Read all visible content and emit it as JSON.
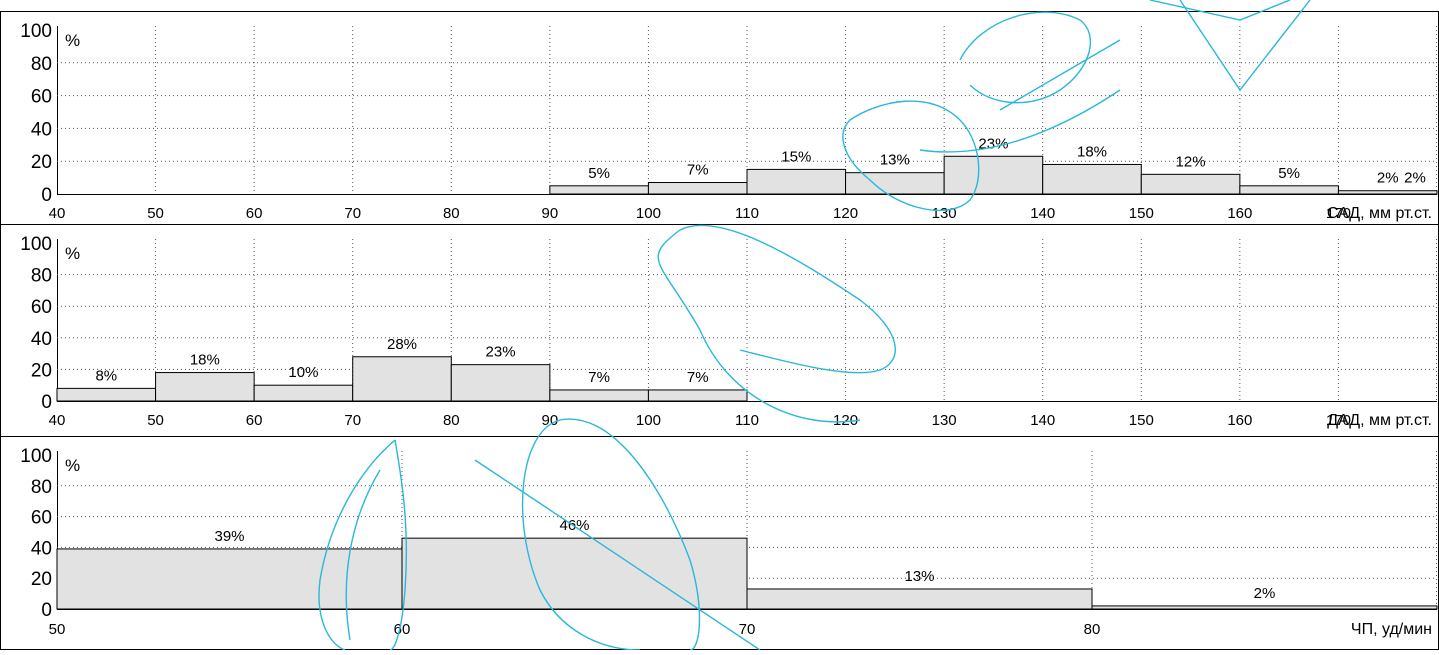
{
  "header_text": "",
  "chart_data": [
    {
      "type": "bar",
      "xlabel": "САД, мм рт.ст.",
      "ylabel": "%",
      "xlim": [
        40,
        180
      ],
      "ylim": [
        0,
        100
      ],
      "x_ticks": [
        "40",
        "50",
        "60",
        "70",
        "80",
        "90",
        "100",
        "110",
        "120",
        "130",
        "140",
        "150",
        "160",
        "170"
      ],
      "y_ticks": [
        "100",
        "80",
        "60",
        "40",
        "20",
        "0"
      ],
      "bins": [
        {
          "from": 90,
          "to": 100,
          "value": 5,
          "label": "5%"
        },
        {
          "from": 100,
          "to": 110,
          "value": 7,
          "label": "7%"
        },
        {
          "from": 110,
          "to": 120,
          "value": 15,
          "label": "15%"
        },
        {
          "from": 120,
          "to": 130,
          "value": 13,
          "label": "13%"
        },
        {
          "from": 130,
          "to": 140,
          "value": 23,
          "label": "23%"
        },
        {
          "from": 140,
          "to": 150,
          "value": 18,
          "label": "18%"
        },
        {
          "from": 150,
          "to": 160,
          "value": 12,
          "label": "12%"
        },
        {
          "from": 160,
          "to": 170,
          "value": 5,
          "label": "5%"
        },
        {
          "from": 170,
          "to": 180,
          "value": 2,
          "label": "2%"
        }
      ],
      "extra_labels": [
        "2%"
      ],
      "grid": true,
      "fill_color": "#e2e2e2"
    },
    {
      "type": "bar",
      "xlabel": "ДАД, мм рт.ст.",
      "ylabel": "%",
      "xlim": [
        40,
        180
      ],
      "ylim": [
        0,
        100
      ],
      "x_ticks": [
        "40",
        "50",
        "60",
        "70",
        "80",
        "90",
        "100",
        "110",
        "120",
        "130",
        "140",
        "150",
        "160",
        "170"
      ],
      "y_ticks": [
        "100",
        "80",
        "60",
        "40",
        "20",
        "0"
      ],
      "bins": [
        {
          "from": 40,
          "to": 50,
          "value": 8,
          "label": "8%"
        },
        {
          "from": 50,
          "to": 60,
          "value": 18,
          "label": "18%"
        },
        {
          "from": 60,
          "to": 70,
          "value": 10,
          "label": "10%"
        },
        {
          "from": 70,
          "to": 80,
          "value": 28,
          "label": "28%"
        },
        {
          "from": 80,
          "to": 90,
          "value": 23,
          "label": "23%"
        },
        {
          "from": 90,
          "to": 100,
          "value": 7,
          "label": "7%"
        },
        {
          "from": 100,
          "to": 110,
          "value": 7,
          "label": "7%"
        }
      ],
      "grid": true,
      "fill_color": "#e2e2e2"
    },
    {
      "type": "bar",
      "xlabel": "ЧП, уд/мин",
      "ylabel": "%",
      "xlim": [
        50,
        90
      ],
      "ylim": [
        0,
        100
      ],
      "x_ticks": [
        "50",
        "60",
        "70",
        "80"
      ],
      "y_ticks": [
        "100",
        "80",
        "60",
        "40",
        "20",
        "0"
      ],
      "bins": [
        {
          "from": 50,
          "to": 60,
          "value": 39,
          "label": "39%"
        },
        {
          "from": 60,
          "to": 70,
          "value": 46,
          "label": "46%"
        },
        {
          "from": 70,
          "to": 80,
          "value": 13,
          "label": "13%"
        },
        {
          "from": 80,
          "to": 90,
          "value": 2,
          "label": "2%"
        }
      ],
      "grid": true,
      "fill_color": "#e2e2e2"
    }
  ],
  "watermark_color": "#29b8d8"
}
